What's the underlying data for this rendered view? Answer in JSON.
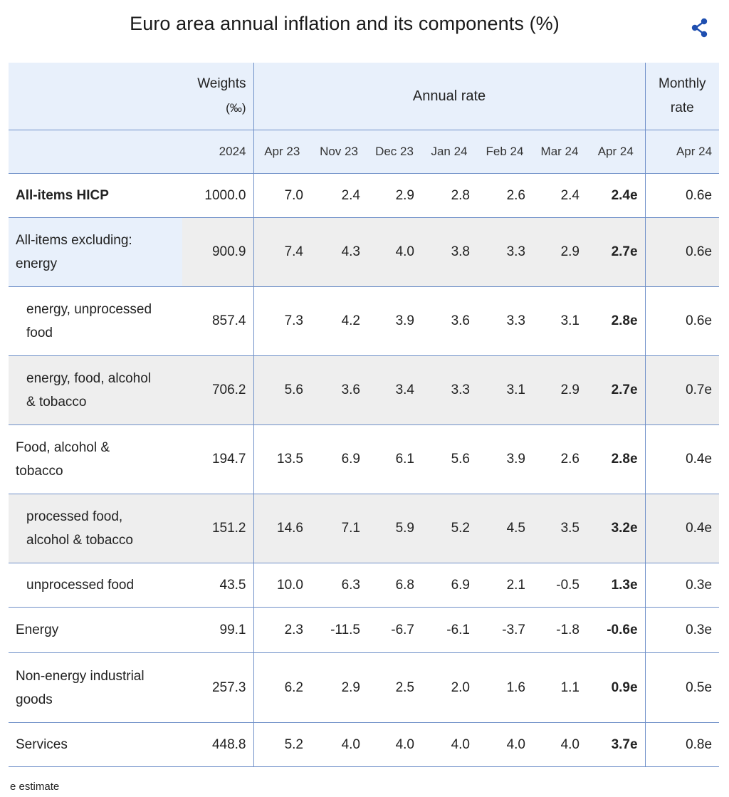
{
  "title": "Euro area annual inflation and its components (%)",
  "share_icon": "share-icon",
  "colors": {
    "accent": "#1f4fb0",
    "grid": "#6e8fc8",
    "header_bg": "#e8f0fb",
    "row_shade": "#eeeeee"
  },
  "chart_data": {
    "type": "table",
    "title": "Euro area annual inflation and its components (%)",
    "header": {
      "weights_label_1": "Weights",
      "weights_label_2": "(‰)",
      "annual_rate_label": "Annual rate",
      "monthly_label_1": "Monthly",
      "monthly_label_2": "rate",
      "weights_year": "2024",
      "periods": [
        "Apr 23",
        "Nov 23",
        "Dec 23",
        "Jan 24",
        "Feb 24",
        "Mar 24",
        "Apr 24"
      ],
      "monthly_period": "Apr 24"
    },
    "rows": [
      {
        "line1": "All-items HICP",
        "line2": "",
        "weight": "1000.0",
        "rates": [
          "7.0",
          "2.4",
          "2.9",
          "2.8",
          "2.6",
          "2.4",
          "2.4e"
        ],
        "monthly": "0.6e"
      },
      {
        "line1": "All-items excluding:",
        "line2": "energy",
        "weight": "900.9",
        "rates": [
          "7.4",
          "4.3",
          "4.0",
          "3.8",
          "3.3",
          "2.9",
          "2.7e"
        ],
        "monthly": "0.6e"
      },
      {
        "line1": "energy, unprocessed",
        "line2": "food",
        "weight": "857.4",
        "rates": [
          "7.3",
          "4.2",
          "3.9",
          "3.6",
          "3.3",
          "3.1",
          "2.8e"
        ],
        "monthly": "0.6e"
      },
      {
        "line1": "energy, food, alcohol",
        "line2": "& tobacco",
        "weight": "706.2",
        "rates": [
          "5.6",
          "3.6",
          "3.4",
          "3.3",
          "3.1",
          "2.9",
          "2.7e"
        ],
        "monthly": "0.7e"
      },
      {
        "line1": "Food, alcohol &",
        "line2": "tobacco",
        "weight": "194.7",
        "rates": [
          "13.5",
          "6.9",
          "6.1",
          "5.6",
          "3.9",
          "2.6",
          "2.8e"
        ],
        "monthly": "0.4e"
      },
      {
        "line1": "processed food,",
        "line2": "alcohol & tobacco",
        "weight": "151.2",
        "rates": [
          "14.6",
          "7.1",
          "5.9",
          "5.2",
          "4.5",
          "3.5",
          "3.2e"
        ],
        "monthly": "0.4e"
      },
      {
        "line1": "unprocessed food",
        "line2": "",
        "weight": "43.5",
        "rates": [
          "10.0",
          "6.3",
          "6.8",
          "6.9",
          "2.1",
          "-0.5",
          "1.3e"
        ],
        "monthly": "0.3e"
      },
      {
        "line1": "Energy",
        "line2": "",
        "weight": "99.1",
        "rates": [
          "2.3",
          "-11.5",
          "-6.7",
          "-6.1",
          "-3.7",
          "-1.8",
          "-0.6e"
        ],
        "monthly": "0.3e"
      },
      {
        "line1": "Non-energy industrial",
        "line2": "goods",
        "weight": "257.3",
        "rates": [
          "6.2",
          "2.9",
          "2.5",
          "2.0",
          "1.6",
          "1.1",
          "0.9e"
        ],
        "monthly": "0.5e"
      },
      {
        "line1": "Services",
        "line2": "",
        "weight": "448.8",
        "rates": [
          "5.2",
          "4.0",
          "4.0",
          "4.0",
          "4.0",
          "4.0",
          "3.7e"
        ],
        "monthly": "0.8e"
      }
    ]
  },
  "footnote": "e estimate"
}
